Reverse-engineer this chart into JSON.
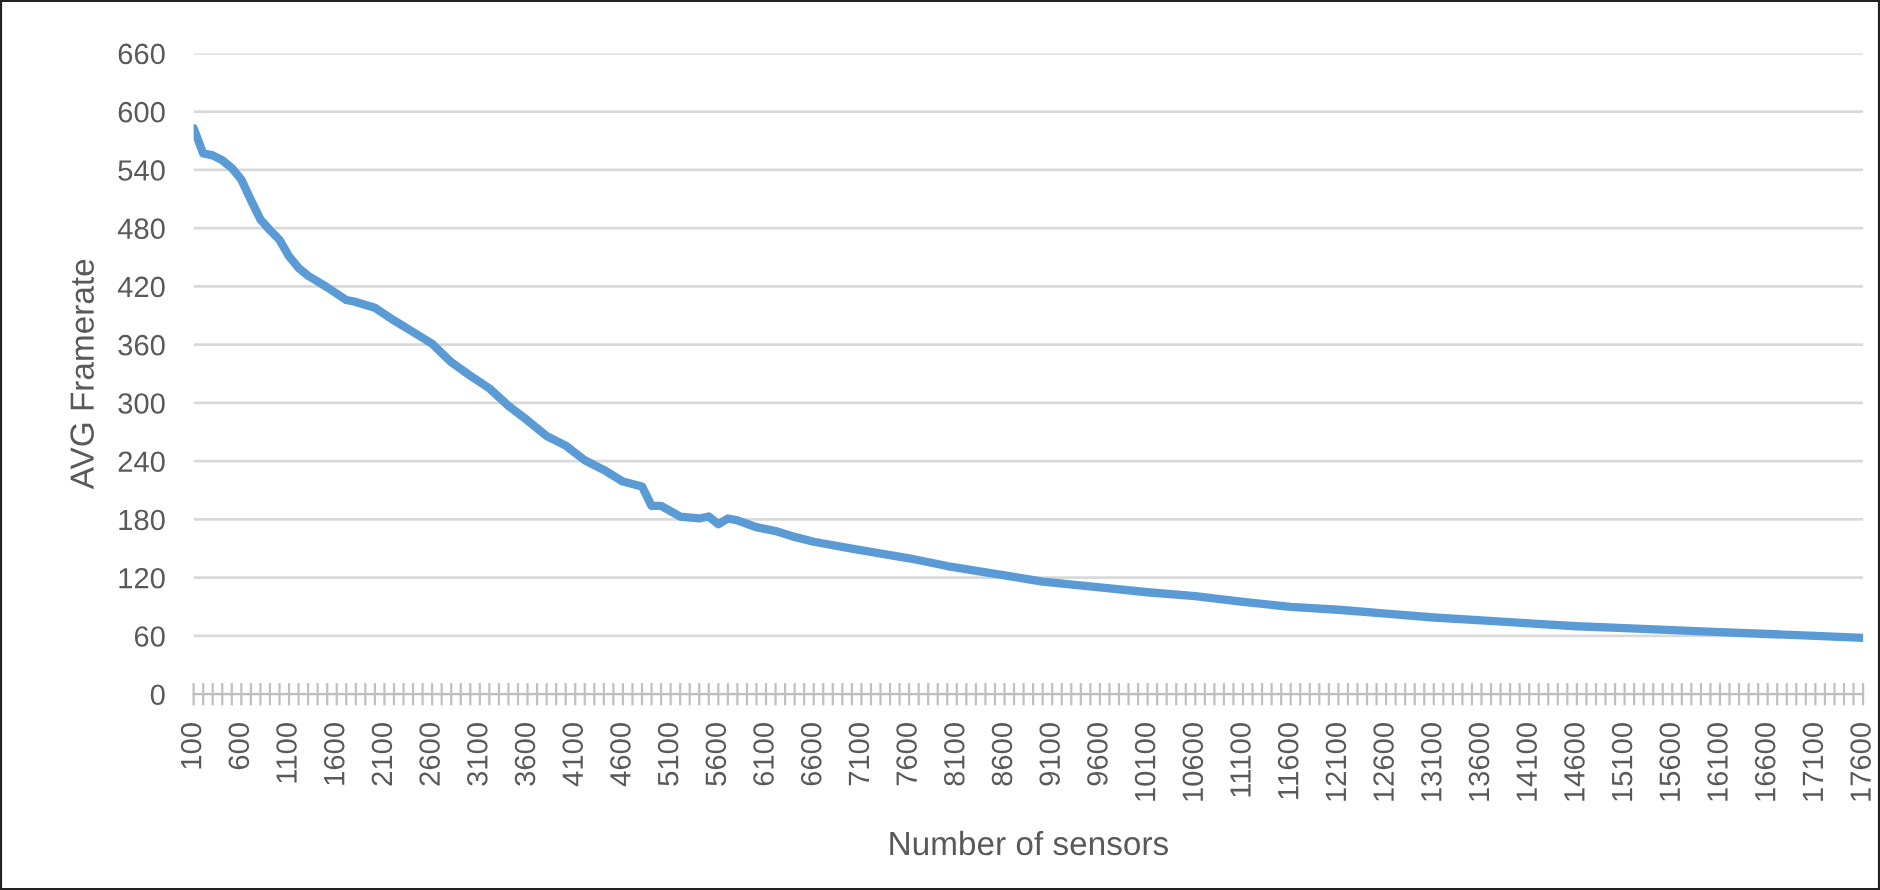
{
  "chart_data": {
    "type": "line",
    "xlabel": "Number of sensors",
    "ylabel": "AVG Framerate",
    "x": [
      100,
      200,
      300,
      400,
      500,
      600,
      700,
      800,
      900,
      1000,
      1100,
      1200,
      1300,
      1400,
      1500,
      1700,
      1800,
      2000,
      2200,
      2400,
      2600,
      2800,
      3000,
      3200,
      3400,
      3600,
      3800,
      4000,
      4200,
      4400,
      4600,
      4800,
      4900,
      5000,
      5200,
      5400,
      5500,
      5600,
      5700,
      5800,
      6000,
      6200,
      6400,
      6600,
      7000,
      7600,
      8000,
      8500,
      9000,
      9600,
      10100,
      10600,
      11100,
      11600,
      12100,
      12600,
      13100,
      13600,
      14100,
      14600,
      15100,
      15600,
      16100,
      16600,
      17100,
      17600
    ],
    "series": [
      {
        "color": "#5b9bd5",
        "values": [
          583,
          557,
          555,
          550,
          542,
          530,
          509,
          489,
          478,
          468,
          451,
          439,
          431,
          425,
          419,
          406,
          404,
          398,
          385,
          373,
          361,
          342,
          328,
          315,
          297,
          282,
          266,
          256,
          241,
          231,
          219,
          214,
          194,
          194,
          183,
          181,
          183,
          175,
          181,
          179,
          172,
          168,
          162,
          157,
          150,
          140,
          132,
          124,
          116,
          110,
          105,
          101,
          95,
          90,
          87,
          83,
          79,
          76,
          73,
          70,
          68,
          66,
          64,
          62,
          60,
          58
        ]
      }
    ],
    "xlim": [
      100,
      17600
    ],
    "xticks": [
      100,
      {
        "value": 200,
        "label": null
      },
      {
        "value": 300,
        "label": null
      },
      {
        "value": 400,
        "label": null
      },
      {
        "value": 500,
        "label": null
      },
      600,
      {
        "value": 700,
        "label": null
      },
      {
        "value": 800,
        "label": null
      },
      {
        "value": 900,
        "label": null
      },
      {
        "value": 1000,
        "label": null
      },
      1100,
      {
        "value": 1200,
        "label": null
      },
      {
        "value": 1300,
        "label": null
      },
      {
        "value": 1400,
        "label": null
      },
      {
        "value": 1500,
        "label": null
      },
      1600,
      {
        "value": 1700,
        "label": null
      },
      {
        "value": 1800,
        "label": null
      },
      {
        "value": 1900,
        "label": null
      },
      {
        "value": 2000,
        "label": null
      },
      2100,
      {
        "value": 2200,
        "label": null
      },
      {
        "value": 2300,
        "label": null
      },
      {
        "value": 2400,
        "label": null
      },
      {
        "value": 2500,
        "label": null
      },
      2600,
      {
        "value": 2700,
        "label": null
      },
      {
        "value": 2800,
        "label": null
      },
      {
        "value": 2900,
        "label": null
      },
      {
        "value": 3000,
        "label": null
      },
      3100,
      {
        "value": 3200,
        "label": null
      },
      {
        "value": 3300,
        "label": null
      },
      {
        "value": 3400,
        "label": null
      },
      {
        "value": 3500,
        "label": null
      },
      3600,
      {
        "value": 3700,
        "label": null
      },
      {
        "value": 3800,
        "label": null
      },
      {
        "value": 3900,
        "label": null
      },
      {
        "value": 4000,
        "label": null
      },
      4100,
      {
        "value": 4200,
        "label": null
      },
      {
        "value": 4300,
        "label": null
      },
      {
        "value": 4400,
        "label": null
      },
      {
        "value": 4500,
        "label": null
      },
      4600,
      {
        "value": 4700,
        "label": null
      },
      {
        "value": 4800,
        "label": null
      },
      {
        "value": 4900,
        "label": null
      },
      {
        "value": 5000,
        "label": null
      },
      5100,
      {
        "value": 5200,
        "label": null
      },
      {
        "value": 5300,
        "label": null
      },
      {
        "value": 5400,
        "label": null
      },
      {
        "value": 5500,
        "label": null
      },
      5600,
      {
        "value": 5700,
        "label": null
      },
      {
        "value": 5800,
        "label": null
      },
      {
        "value": 5900,
        "label": null
      },
      {
        "value": 6000,
        "label": null
      },
      6100,
      {
        "value": 6200,
        "label": null
      },
      {
        "value": 6300,
        "label": null
      },
      {
        "value": 6400,
        "label": null
      },
      {
        "value": 6500,
        "label": null
      },
      6600,
      {
        "value": 6700,
        "label": null
      },
      {
        "value": 6800,
        "label": null
      },
      {
        "value": 6900,
        "label": null
      },
      {
        "value": 7000,
        "label": null
      },
      7100,
      {
        "value": 7200,
        "label": null
      },
      {
        "value": 7300,
        "label": null
      },
      {
        "value": 7400,
        "label": null
      },
      {
        "value": 7500,
        "label": null
      },
      7600,
      {
        "value": 7700,
        "label": null
      },
      {
        "value": 7800,
        "label": null
      },
      {
        "value": 7900,
        "label": null
      },
      {
        "value": 8000,
        "label": null
      },
      8100,
      {
        "value": 8200,
        "label": null
      },
      {
        "value": 8300,
        "label": null
      },
      {
        "value": 8400,
        "label": null
      },
      {
        "value": 8500,
        "label": null
      },
      8600,
      {
        "value": 8700,
        "label": null
      },
      {
        "value": 8800,
        "label": null
      },
      {
        "value": 8900,
        "label": null
      },
      {
        "value": 9000,
        "label": null
      },
      9100,
      {
        "value": 9200,
        "label": null
      },
      {
        "value": 9300,
        "label": null
      },
      {
        "value": 9400,
        "label": null
      },
      {
        "value": 9500,
        "label": null
      },
      9600,
      {
        "value": 9700,
        "label": null
      },
      {
        "value": 9800,
        "label": null
      },
      {
        "value": 9900,
        "label": null
      },
      {
        "value": 10000,
        "label": null
      },
      10100,
      {
        "value": 10200,
        "label": null
      },
      {
        "value": 10300,
        "label": null
      },
      {
        "value": 10400,
        "label": null
      },
      {
        "value": 10500,
        "label": null
      },
      10600,
      {
        "value": 10700,
        "label": null
      },
      {
        "value": 10800,
        "label": null
      },
      {
        "value": 10900,
        "label": null
      },
      {
        "value": 11000,
        "label": null
      },
      11100,
      {
        "value": 11200,
        "label": null
      },
      {
        "value": 11300,
        "label": null
      },
      {
        "value": 11400,
        "label": null
      },
      {
        "value": 11500,
        "label": null
      },
      11600,
      {
        "value": 11700,
        "label": null
      },
      {
        "value": 11800,
        "label": null
      },
      {
        "value": 11900,
        "label": null
      },
      {
        "value": 12000,
        "label": null
      },
      12100,
      {
        "value": 12200,
        "label": null
      },
      {
        "value": 12300,
        "label": null
      },
      {
        "value": 12400,
        "label": null
      },
      {
        "value": 12500,
        "label": null
      },
      12600,
      {
        "value": 12700,
        "label": null
      },
      {
        "value": 12800,
        "label": null
      },
      {
        "value": 12900,
        "label": null
      },
      {
        "value": 13000,
        "label": null
      },
      13100,
      {
        "value": 13200,
        "label": null
      },
      {
        "value": 13300,
        "label": null
      },
      {
        "value": 13400,
        "label": null
      },
      {
        "value": 13500,
        "label": null
      },
      13600,
      {
        "value": 13700,
        "label": null
      },
      {
        "value": 13800,
        "label": null
      },
      {
        "value": 13900,
        "label": null
      },
      {
        "value": 14000,
        "label": null
      },
      14100,
      {
        "value": 14200,
        "label": null
      },
      {
        "value": 14300,
        "label": null
      },
      {
        "value": 14400,
        "label": null
      },
      {
        "value": 14500,
        "label": null
      },
      14600,
      {
        "value": 14700,
        "label": null
      },
      {
        "value": 14800,
        "label": null
      },
      {
        "value": 14900,
        "label": null
      },
      {
        "value": 15000,
        "label": null
      },
      15100,
      {
        "value": 15200,
        "label": null
      },
      {
        "value": 15300,
        "label": null
      },
      {
        "value": 15400,
        "label": null
      },
      {
        "value": 15500,
        "label": null
      },
      15600,
      {
        "value": 15700,
        "label": null
      },
      {
        "value": 15800,
        "label": null
      },
      {
        "value": 15900,
        "label": null
      },
      {
        "value": 16000,
        "label": null
      },
      16100,
      {
        "value": 16200,
        "label": null
      },
      {
        "value": 16300,
        "label": null
      },
      {
        "value": 16400,
        "label": null
      },
      {
        "value": 16500,
        "label": null
      },
      16600,
      {
        "value": 16700,
        "label": null
      },
      {
        "value": 16800,
        "label": null
      },
      {
        "value": 16900,
        "label": null
      },
      {
        "value": 17000,
        "label": null
      },
      17100,
      {
        "value": 17200,
        "label": null
      },
      {
        "value": 17300,
        "label": null
      },
      {
        "value": 17400,
        "label": null
      },
      {
        "value": 17500,
        "label": null
      },
      17600
    ],
    "ylim": [
      0,
      660
    ],
    "yticks": [
      0,
      60,
      120,
      180,
      240,
      300,
      360,
      420,
      480,
      540,
      600,
      660
    ],
    "grid": "y",
    "legend": false,
    "marker": "none",
    "line_style": "solid"
  }
}
